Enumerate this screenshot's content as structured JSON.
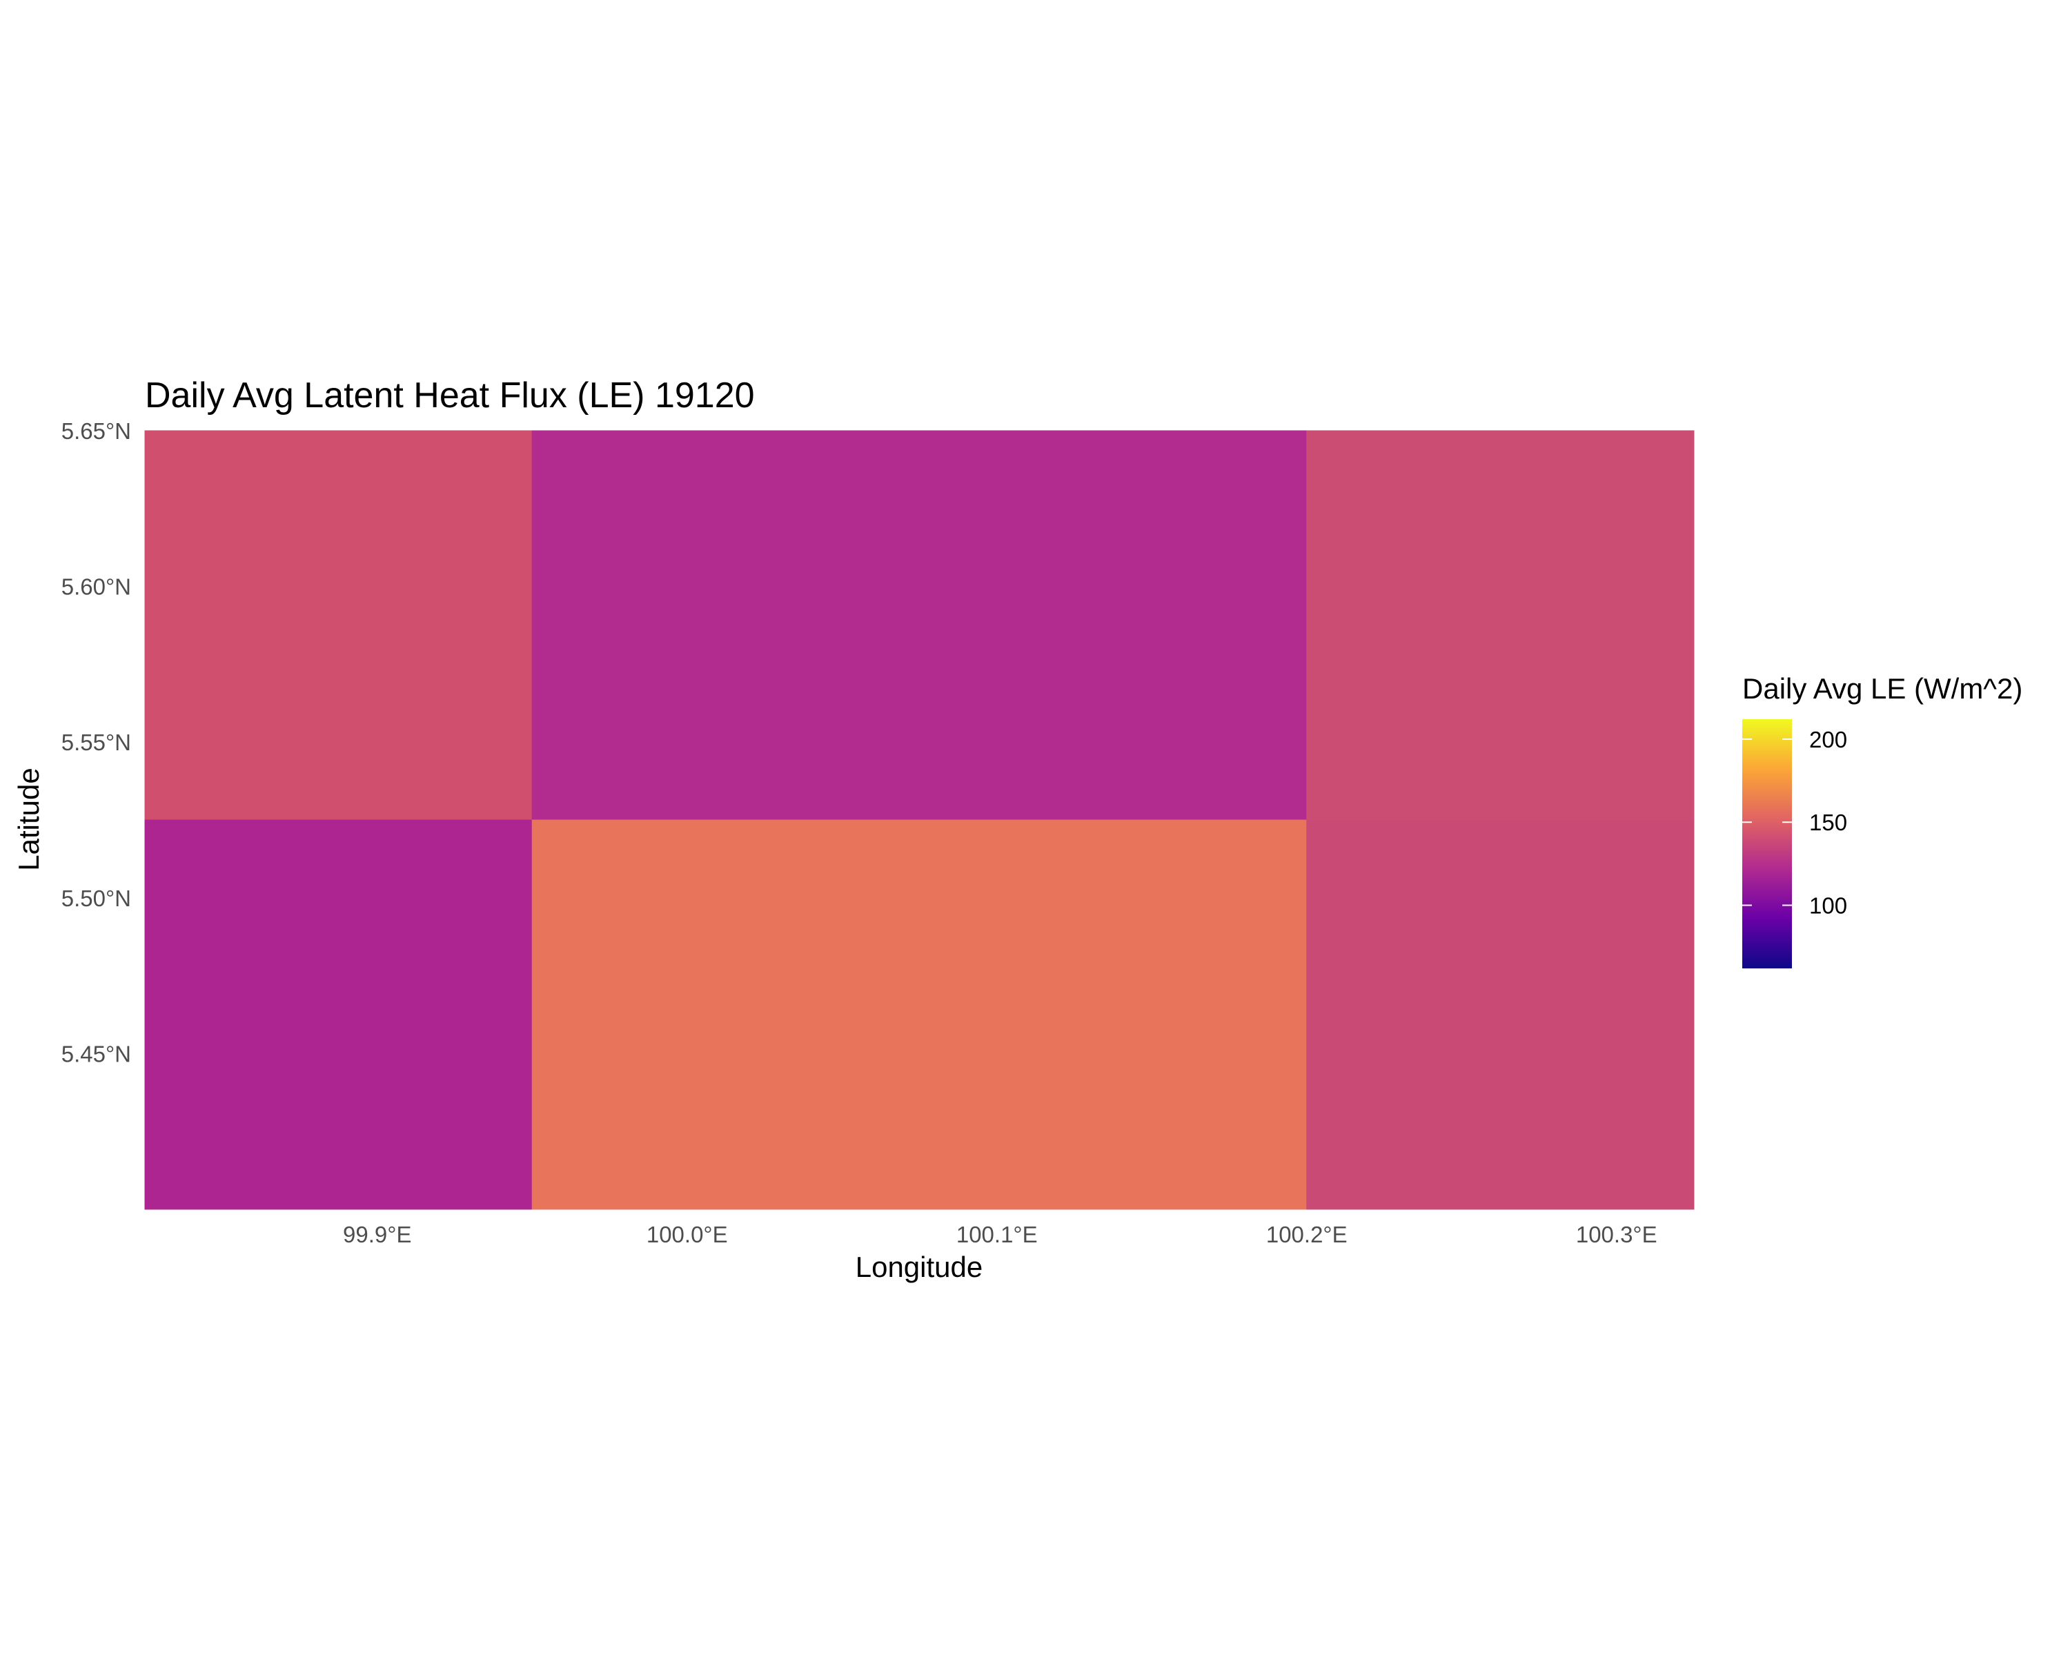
{
  "chart_data": {
    "type": "heatmap",
    "title": "Daily Avg Latent Heat Flux (LE) 19120",
    "xlabel": "Longitude",
    "ylabel": "Latitude",
    "xlim": [
      99.825,
      100.325
    ],
    "ylim": [
      5.4,
      5.65
    ],
    "x_ticks": [
      {
        "value": 99.9,
        "label": "99.9°E"
      },
      {
        "value": 100.0,
        "label": "100.0°E"
      },
      {
        "value": 100.1,
        "label": "100.1°E"
      },
      {
        "value": 100.2,
        "label": "100.2°E"
      },
      {
        "value": 100.3,
        "label": "100.3°E"
      }
    ],
    "y_ticks": [
      {
        "value": 5.65,
        "label": "5.65°N"
      },
      {
        "value": 5.6,
        "label": "5.60°N"
      },
      {
        "value": 5.55,
        "label": "5.55°N"
      },
      {
        "value": 5.5,
        "label": "5.50°N"
      },
      {
        "value": 5.45,
        "label": "5.45°N"
      }
    ],
    "cells": [
      {
        "lon_min": 99.825,
        "lon_max": 99.95,
        "lat_min": 5.525,
        "lat_max": 5.65,
        "value": 140,
        "color": "#d04f6f"
      },
      {
        "lon_min": 99.95,
        "lon_max": 100.2,
        "lat_min": 5.525,
        "lat_max": 5.65,
        "value": 118,
        "color": "#b22b8e"
      },
      {
        "lon_min": 100.2,
        "lon_max": 100.325,
        "lat_min": 5.525,
        "lat_max": 5.65,
        "value": 138,
        "color": "#cc4d73"
      },
      {
        "lon_min": 99.825,
        "lon_max": 99.95,
        "lat_min": 5.4,
        "lat_max": 5.525,
        "value": 115,
        "color": "#ad2590"
      },
      {
        "lon_min": 99.95,
        "lon_max": 100.2,
        "lat_min": 5.4,
        "lat_max": 5.525,
        "value": 164,
        "color": "#e8745b"
      },
      {
        "lon_min": 100.2,
        "lon_max": 100.325,
        "lat_min": 5.4,
        "lat_max": 5.525,
        "value": 136,
        "color": "#ca4a76"
      }
    ],
    "legend": {
      "title": "Daily Avg LE (W/m^2)",
      "placement": "right",
      "range": [
        62,
        212
      ],
      "ticks": [
        {
          "value": 100,
          "label": "100"
        },
        {
          "value": 150,
          "label": "150"
        },
        {
          "value": 200,
          "label": "200"
        }
      ],
      "colormap": "plasma",
      "gradient_stops": [
        "#0d0887",
        "#6a00a8",
        "#b12a90",
        "#e16462",
        "#fca636",
        "#f0f921"
      ]
    },
    "grid": false
  }
}
